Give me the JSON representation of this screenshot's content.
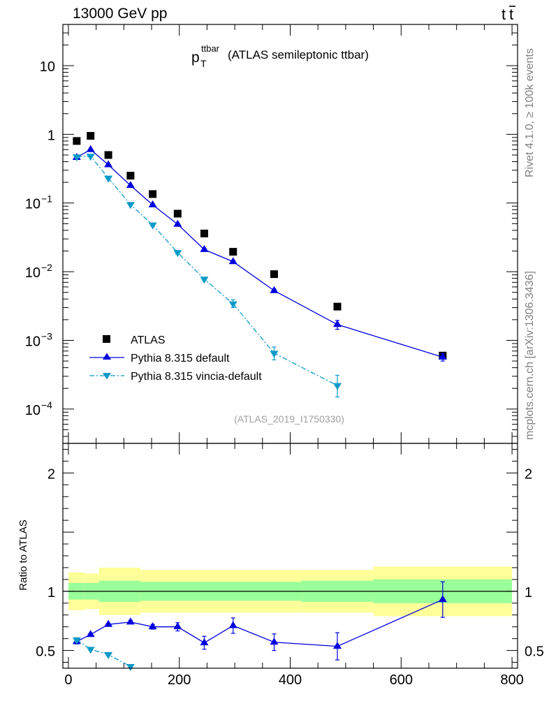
{
  "header": {
    "left": "13000 GeV pp",
    "right_main": "t",
    "right_bar": "t"
  },
  "side_labels": {
    "rivet": "Rivet 4.1.0, ≥ 100k events",
    "mcplots": "mcplots.cern.ch [arXiv:1306.3436]"
  },
  "colors": {
    "atlas": "#000000",
    "pythia_default": "#0000dd",
    "pythia_vincia": "#0d9ac8",
    "band_outer": "#ffff99",
    "band_inner": "#99ff99"
  },
  "chart_data": [
    {
      "type": "scatter",
      "panel": "main",
      "title_main": "p",
      "title_sup": "ttbar",
      "title_sub": "T",
      "title_rest": "(ATLAS semileptonic ttbar)",
      "analysis_tag": "(ATLAS_2019_I1750330)",
      "xlim": [
        -10,
        810
      ],
      "ylim_log10": [
        -4.5,
        1.6
      ],
      "yscale": "log",
      "y_ticks": [
        {
          "exp": 1,
          "label": "10",
          "sup": ""
        },
        {
          "exp": 0,
          "label": "1",
          "sup": ""
        },
        {
          "exp": -1,
          "label": "10",
          "sup": "−1"
        },
        {
          "exp": -2,
          "label": "10",
          "sup": "−2"
        },
        {
          "exp": -3,
          "label": "10",
          "sup": "−3"
        },
        {
          "exp": -4,
          "label": "10",
          "sup": "−4"
        }
      ],
      "legend": [
        {
          "key": "atlas",
          "label": "ATLAS"
        },
        {
          "key": "default",
          "label": "Pythia 8.315 default"
        },
        {
          "key": "vincia",
          "label": "Pythia 8.315 vincia-default"
        }
      ],
      "series": [
        {
          "name": "ATLAS",
          "key": "atlas",
          "x": [
            15,
            40,
            72,
            112,
            152,
            197,
            245,
            297,
            371,
            485,
            675
          ],
          "y": [
            0.8,
            0.95,
            0.5,
            0.25,
            0.135,
            0.07,
            0.036,
            0.0195,
            0.0092,
            0.0031,
            0.0006
          ]
        },
        {
          "name": "Pythia 8.315 default",
          "key": "default",
          "x": [
            15,
            40,
            72,
            112,
            152,
            197,
            245,
            297,
            371,
            485,
            675
          ],
          "y": [
            0.46,
            0.6,
            0.36,
            0.18,
            0.094,
            0.049,
            0.021,
            0.014,
            0.0053,
            0.0017,
            0.00057
          ],
          "err_lo": [
            0.44,
            0.58,
            0.35,
            0.175,
            0.091,
            0.047,
            0.02,
            0.0133,
            0.005,
            0.00145,
            0.0005
          ],
          "err_hi": [
            0.48,
            0.62,
            0.37,
            0.185,
            0.097,
            0.051,
            0.022,
            0.0147,
            0.0056,
            0.00195,
            0.00064
          ]
        },
        {
          "name": "Pythia 8.315 vincia-default",
          "key": "vincia",
          "x": [
            15,
            40,
            72,
            112,
            152,
            197,
            245,
            297,
            371,
            485
          ],
          "y": [
            0.47,
            0.48,
            0.23,
            0.095,
            0.048,
            0.019,
            0.0078,
            0.0034,
            0.00065,
            0.00022
          ],
          "err_lo": [
            0.46,
            0.47,
            0.225,
            0.092,
            0.046,
            0.018,
            0.0074,
            0.003,
            0.00052,
            0.00015
          ],
          "err_hi": [
            0.48,
            0.49,
            0.235,
            0.098,
            0.05,
            0.02,
            0.0082,
            0.0039,
            0.0008,
            0.00031
          ]
        }
      ]
    },
    {
      "type": "line",
      "panel": "ratio",
      "ylabel": "Ratio to ATLAS",
      "xlim": [
        -10,
        810
      ],
      "ylim": [
        0.35,
        2.25
      ],
      "x_ticks": [
        0,
        200,
        400,
        600,
        800
      ],
      "x_tick_labels": [
        "0",
        "200",
        "400",
        "600",
        "800"
      ],
      "y_ticks": [
        0.5,
        1,
        2
      ],
      "y_tick_labels": [
        "0.5",
        "1",
        "2"
      ],
      "bands": [
        {
          "lo": 0,
          "hi": 30,
          "outer": [
            0.84,
            1.16
          ],
          "inner": [
            0.93,
            1.07
          ]
        },
        {
          "lo": 30,
          "hi": 55,
          "outer": [
            0.85,
            1.15
          ],
          "inner": [
            0.93,
            1.07
          ]
        },
        {
          "lo": 55,
          "hi": 130,
          "outer": [
            0.8,
            1.2
          ],
          "inner": [
            0.91,
            1.09
          ]
        },
        {
          "lo": 130,
          "hi": 420,
          "outer": [
            0.82,
            1.18
          ],
          "inner": [
            0.92,
            1.08
          ]
        },
        {
          "lo": 420,
          "hi": 550,
          "outer": [
            0.82,
            1.18
          ],
          "inner": [
            0.91,
            1.09
          ]
        },
        {
          "lo": 550,
          "hi": 800,
          "outer": [
            0.79,
            1.21
          ],
          "inner": [
            0.9,
            1.1
          ]
        }
      ],
      "series": [
        {
          "name": "Pythia 8.315 default",
          "key": "default",
          "x": [
            15,
            40,
            72,
            112,
            152,
            197,
            245,
            297,
            371,
            485,
            675
          ],
          "y": [
            0.575,
            0.635,
            0.72,
            0.74,
            0.7,
            0.7,
            0.565,
            0.71,
            0.57,
            0.535,
            0.93
          ],
          "err_lo": [
            0.555,
            0.625,
            0.71,
            0.725,
            0.68,
            0.665,
            0.51,
            0.645,
            0.5,
            0.42,
            0.78
          ],
          "err_hi": [
            0.595,
            0.645,
            0.73,
            0.755,
            0.72,
            0.735,
            0.62,
            0.775,
            0.64,
            0.65,
            1.08
          ]
        },
        {
          "name": "Pythia 8.315 vincia-default",
          "key": "vincia",
          "x": [
            15,
            40,
            72,
            112
          ],
          "y": [
            0.59,
            0.51,
            0.465,
            0.365
          ],
          "err_lo": [
            0.575,
            0.5,
            0.455,
            0.355
          ],
          "err_hi": [
            0.605,
            0.52,
            0.475,
            0.375
          ]
        }
      ]
    }
  ]
}
